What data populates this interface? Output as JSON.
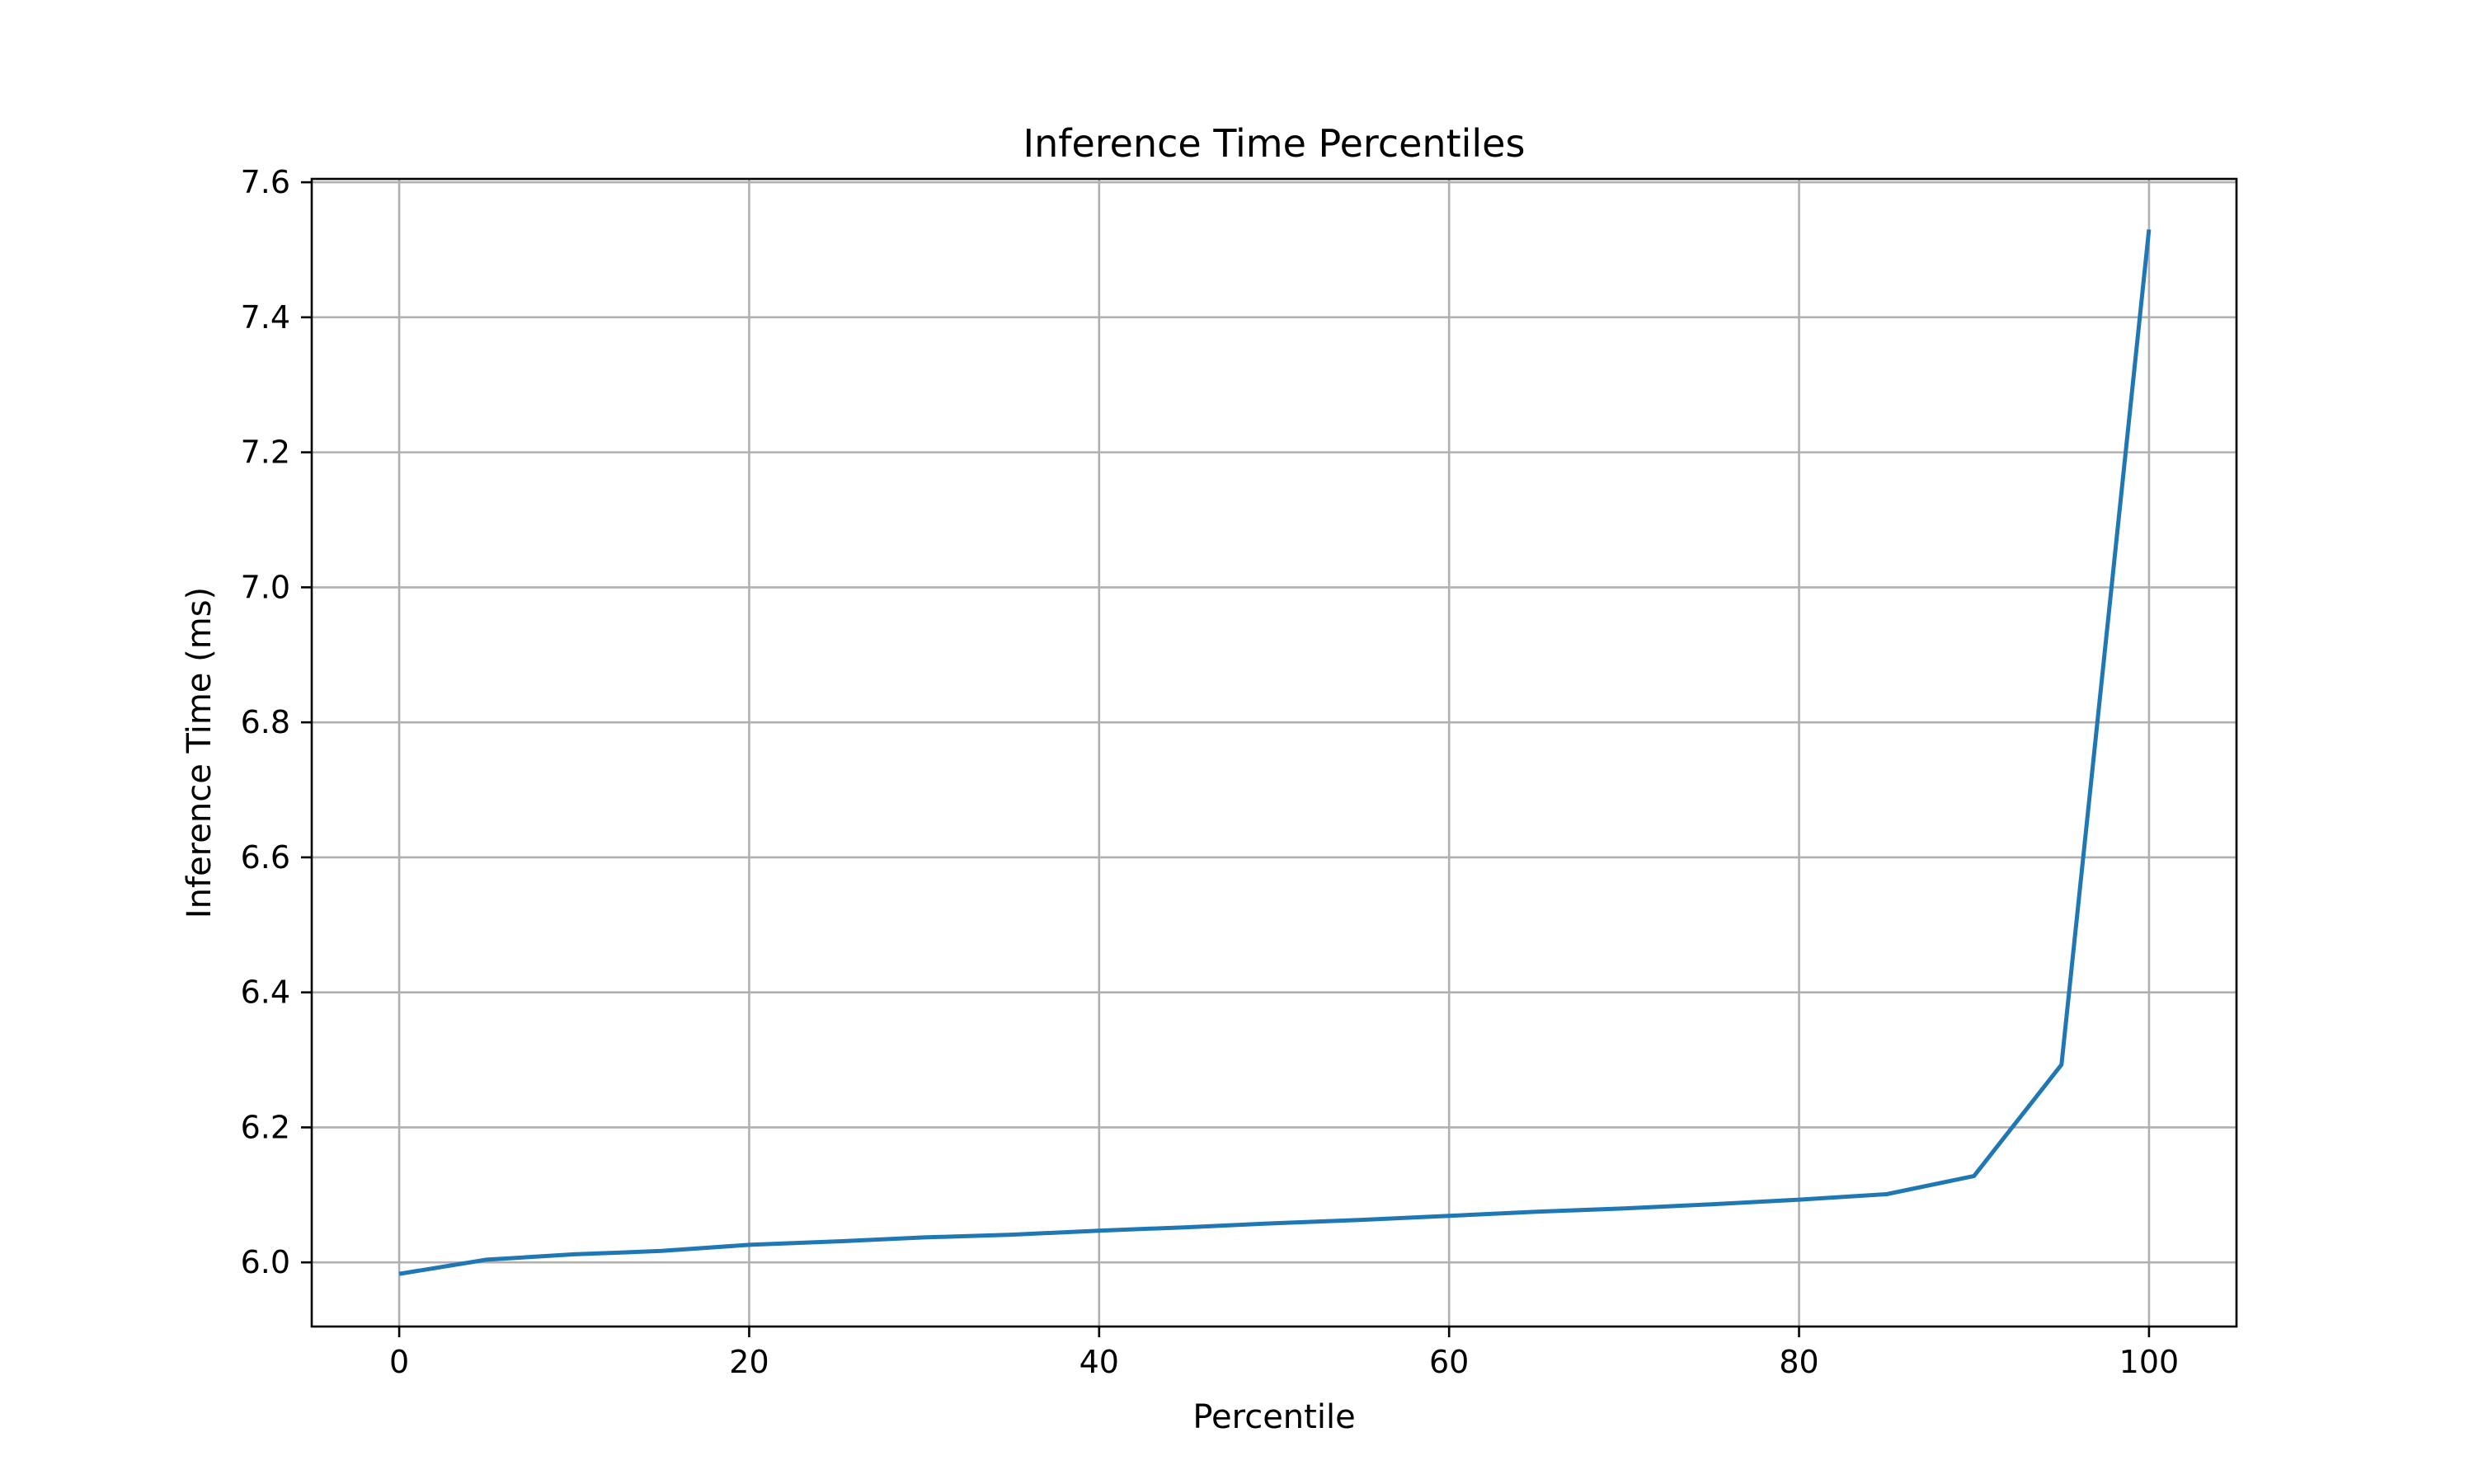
{
  "chart_data": {
    "type": "line",
    "title": "Inference Time Percentiles",
    "xlabel": "Percentile",
    "ylabel": "Inference Time (ms)",
    "xlim": [
      -5,
      105
    ],
    "ylim": [
      5.905,
      7.605
    ],
    "x_ticks": [
      0,
      20,
      40,
      60,
      80,
      100
    ],
    "x_tick_labels": [
      "0",
      "20",
      "40",
      "60",
      "80",
      "100"
    ],
    "y_ticks": [
      6.0,
      6.2,
      6.4,
      6.6,
      6.8,
      7.0,
      7.2,
      7.4,
      7.6
    ],
    "y_tick_labels": [
      "6.0",
      "6.2",
      "6.4",
      "6.6",
      "6.8",
      "7.0",
      "7.2",
      "7.4",
      "7.6"
    ],
    "grid": true,
    "series": [
      {
        "color": "#1f77b4",
        "x": [
          0,
          5,
          10,
          15,
          20,
          25,
          30,
          35,
          40,
          45,
          50,
          55,
          60,
          65,
          70,
          75,
          80,
          85,
          90,
          95,
          100
        ],
        "y": [
          5.983,
          6.004,
          6.012,
          6.017,
          6.026,
          6.031,
          6.037,
          6.041,
          6.047,
          6.052,
          6.058,
          6.063,
          6.069,
          6.075,
          6.08,
          6.086,
          6.093,
          6.101,
          6.128,
          6.293,
          7.53
        ]
      }
    ]
  }
}
